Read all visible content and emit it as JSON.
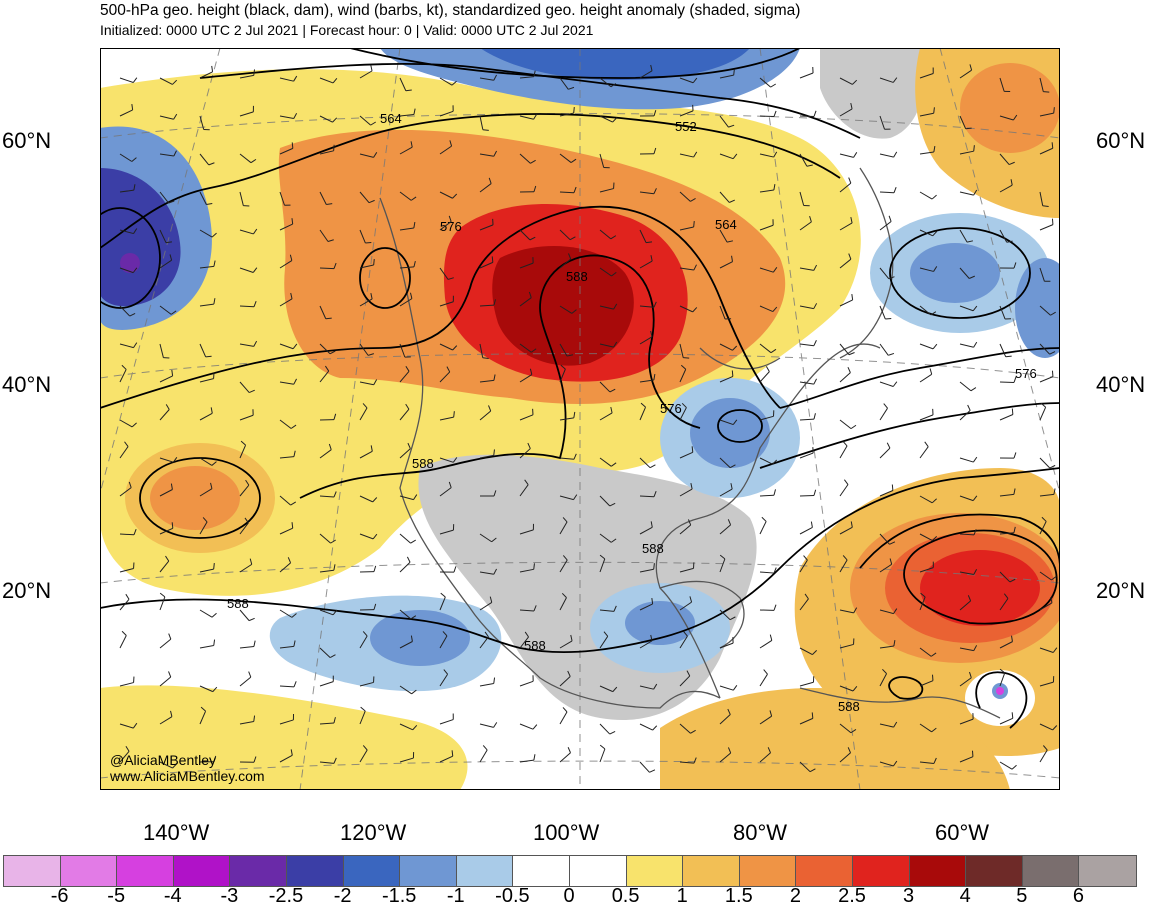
{
  "header": {
    "title": "500-hPa geo. height (black, dam), wind (barbs, kt), standardized geo. height anomaly (shaded, sigma)",
    "subtitle": "Initialized: 0000 UTC 2 Jul 2021 | Forecast hour: 0 | Valid: 0000 UTC 2 Jul 2021"
  },
  "map": {
    "lat_labels": [
      "60°N",
      "40°N",
      "20°N"
    ],
    "lon_labels": [
      "140°W",
      "120°W",
      "100°W",
      "80°W",
      "60°W"
    ],
    "contour_labels": [
      "564",
      "552",
      "576",
      "588",
      "564",
      "576",
      "576",
      "588",
      "588",
      "588",
      "588",
      "588"
    ],
    "credit_handle": "@AliciaMBentley",
    "credit_site": "www.AliciaMBentley.com"
  },
  "colorbar": {
    "labels": [
      "-6",
      "-5",
      "-4",
      "-3",
      "-2.5",
      "-2",
      "-1.5",
      "-1",
      "-0.5",
      "0",
      "0.5",
      "1",
      "1.5",
      "2",
      "2.5",
      "3",
      "4",
      "5",
      "6"
    ],
    "colors": [
      "#e8b4e8",
      "#e27be6",
      "#d640e0",
      "#b012c8",
      "#6a2aa8",
      "#3b3ea6",
      "#3a66bf",
      "#6f97d3",
      "#a9cbe8",
      "#ffffff",
      "#ffffff",
      "#f8e36c",
      "#f2bf55",
      "#ef9445",
      "#ea6233",
      "#e0231e",
      "#a80a0a",
      "#6e2a28",
      "#7a6e6e",
      "#aaa2a2"
    ]
  }
}
